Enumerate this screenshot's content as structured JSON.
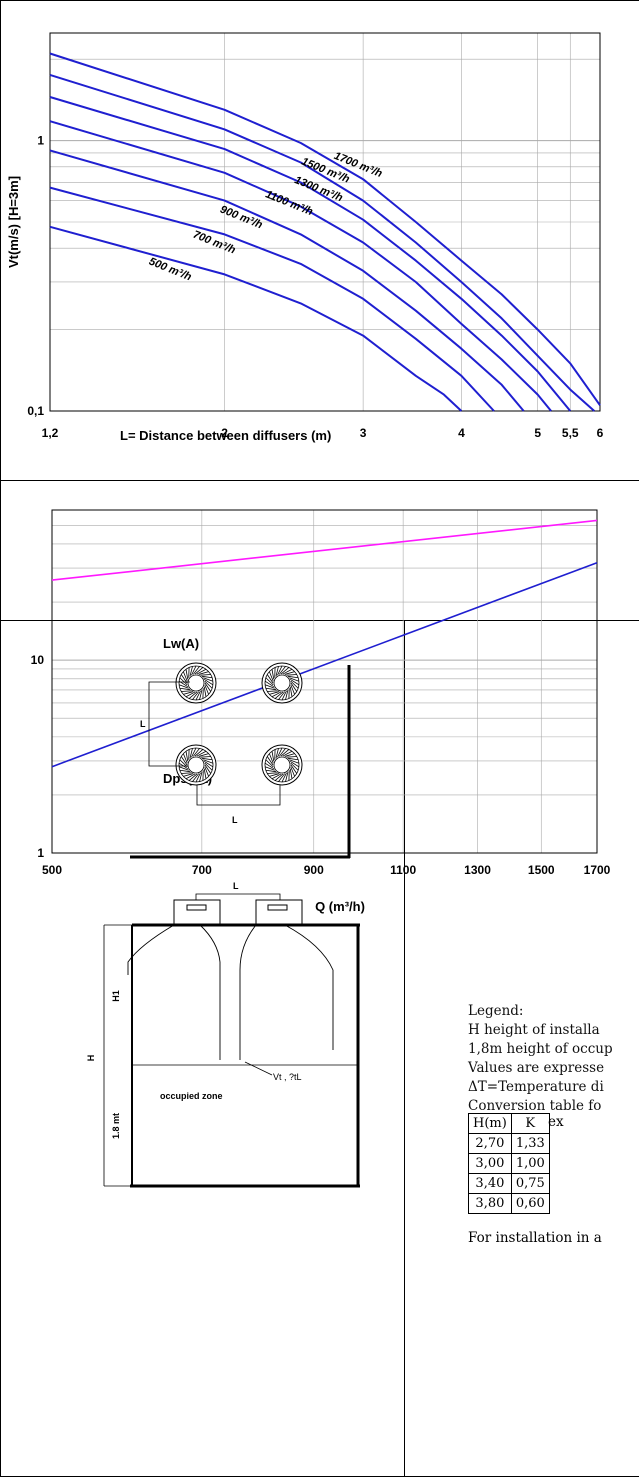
{
  "chart_data": [
    {
      "type": "line",
      "xscale": "log",
      "yscale": "log",
      "xlabel": "L= Distance between diffusers (m)",
      "ylabel": "Vt(m/s) [H=3m]",
      "xlim": [
        1.2,
        6
      ],
      "ylim": [
        0.1,
        2.5
      ],
      "x_ticks": [
        1.2,
        2,
        3,
        4,
        5,
        5.5,
        6
      ],
      "x_tick_labels": [
        "1,2",
        "2",
        "3",
        "4",
        "5",
        "5,5",
        "6"
      ],
      "y_ticks": [
        0.1,
        1
      ],
      "y_tick_labels": [
        "0,1",
        "1"
      ],
      "grid": true,
      "series": [
        {
          "name": "1700 m³/h",
          "points": [
            [
              1.2,
              2.1
            ],
            [
              2,
              1.3
            ],
            [
              2.5,
              0.98
            ],
            [
              3,
              0.72
            ],
            [
              3.5,
              0.5
            ],
            [
              4,
              0.36
            ],
            [
              4.5,
              0.27
            ],
            [
              5,
              0.2
            ],
            [
              5.5,
              0.15
            ],
            [
              6,
              0.105
            ]
          ]
        },
        {
          "name": "1500 m³/h",
          "points": [
            [
              1.2,
              1.75
            ],
            [
              2,
              1.1
            ],
            [
              2.5,
              0.83
            ],
            [
              3,
              0.6
            ],
            [
              3.5,
              0.42
            ],
            [
              4,
              0.3
            ],
            [
              4.5,
              0.22
            ],
            [
              5,
              0.16
            ],
            [
              5.5,
              0.12
            ],
            [
              5.9,
              0.1
            ]
          ]
        },
        {
          "name": "1300 m³/h",
          "points": [
            [
              1.2,
              1.45
            ],
            [
              2,
              0.93
            ],
            [
              2.5,
              0.7
            ],
            [
              3,
              0.51
            ],
            [
              3.5,
              0.36
            ],
            [
              4,
              0.26
            ],
            [
              4.5,
              0.19
            ],
            [
              5,
              0.14
            ],
            [
              5.5,
              0.1
            ]
          ]
        },
        {
          "name": "1100 m³/h",
          "points": [
            [
              1.2,
              1.18
            ],
            [
              2,
              0.76
            ],
            [
              2.5,
              0.57
            ],
            [
              3,
              0.42
            ],
            [
              3.5,
              0.3
            ],
            [
              4,
              0.21
            ],
            [
              4.5,
              0.155
            ],
            [
              5,
              0.115
            ],
            [
              5.2,
              0.1
            ]
          ]
        },
        {
          "name": "900 m³/h",
          "points": [
            [
              1.2,
              0.92
            ],
            [
              2,
              0.6
            ],
            [
              2.5,
              0.45
            ],
            [
              3,
              0.33
            ],
            [
              3.5,
              0.235
            ],
            [
              4,
              0.17
            ],
            [
              4.5,
              0.125
            ],
            [
              4.8,
              0.1
            ]
          ]
        },
        {
          "name": "700 m³/h",
          "points": [
            [
              1.2,
              0.67
            ],
            [
              2,
              0.45
            ],
            [
              2.5,
              0.35
            ],
            [
              3,
              0.26
            ],
            [
              3.5,
              0.185
            ],
            [
              4,
              0.135
            ],
            [
              4.4,
              0.1
            ]
          ]
        },
        {
          "name": "500 m³/h",
          "points": [
            [
              1.2,
              0.48
            ],
            [
              2,
              0.32
            ],
            [
              2.5,
              0.25
            ],
            [
              3,
              0.19
            ],
            [
              3.5,
              0.135
            ],
            [
              3.8,
              0.115
            ],
            [
              4,
              0.1
            ]
          ]
        }
      ]
    },
    {
      "type": "line",
      "xscale": "log",
      "yscale": "log",
      "xlabel": "Q (m³/h)",
      "ylabel": "",
      "xlim": [
        500,
        1700
      ],
      "ylim": [
        1,
        60
      ],
      "x_ticks": [
        500,
        700,
        900,
        1100,
        1300,
        1500,
        1700
      ],
      "x_tick_labels": [
        "500",
        "700",
        "900",
        "1100",
        "1300",
        "1500",
        "1700"
      ],
      "y_ticks": [
        1,
        10
      ],
      "y_tick_labels": [
        "1",
        "10"
      ],
      "grid": true,
      "series": [
        {
          "name": "Lw(A)",
          "points": [
            [
              500,
              26
            ],
            [
              1700,
              53
            ]
          ]
        },
        {
          "name": "Dps(Pa)",
          "points": [
            [
              500,
              2.8
            ],
            [
              1700,
              32
            ]
          ]
        }
      ]
    }
  ],
  "colors": {
    "curve": "#1f1fd0",
    "lwa": "#ff19ff",
    "frame": "#000000",
    "grid": "#aaaaaa"
  },
  "chart1": {
    "series_labels": [
      "1700 m³/h",
      "1500 m³/h",
      "1300 m³/h",
      "1100 m³/h",
      "900 m³/h",
      "700 m³/h",
      "500 m³/h"
    ]
  },
  "diagram": {
    "plan_dim_label_v": "L",
    "plan_dim_label_h": "L",
    "section_dim_label": "L",
    "height_label": "H",
    "h1_label": "H1",
    "occupied_height_label": "1.8 mt",
    "velocity_label": "Vt , ?tL",
    "occupied_zone_label": "occupied zone"
  },
  "legend": {
    "title": "Legend:",
    "lines": [
      "H height of installa",
      "1,8m height of occup",
      "Values are expresse",
      "ΔT=Temperature di",
      "Conversion table fo"
    ],
    "table_headers": [
      "H(m)",
      "K"
    ],
    "table_rows": [
      [
        "2,70",
        "1,33"
      ],
      [
        "3,00",
        "1,00"
      ],
      [
        "3,40",
        "0,75"
      ],
      [
        "3,80",
        "0,60"
      ]
    ],
    "example_text": "ex",
    "note": "For installation in a"
  }
}
